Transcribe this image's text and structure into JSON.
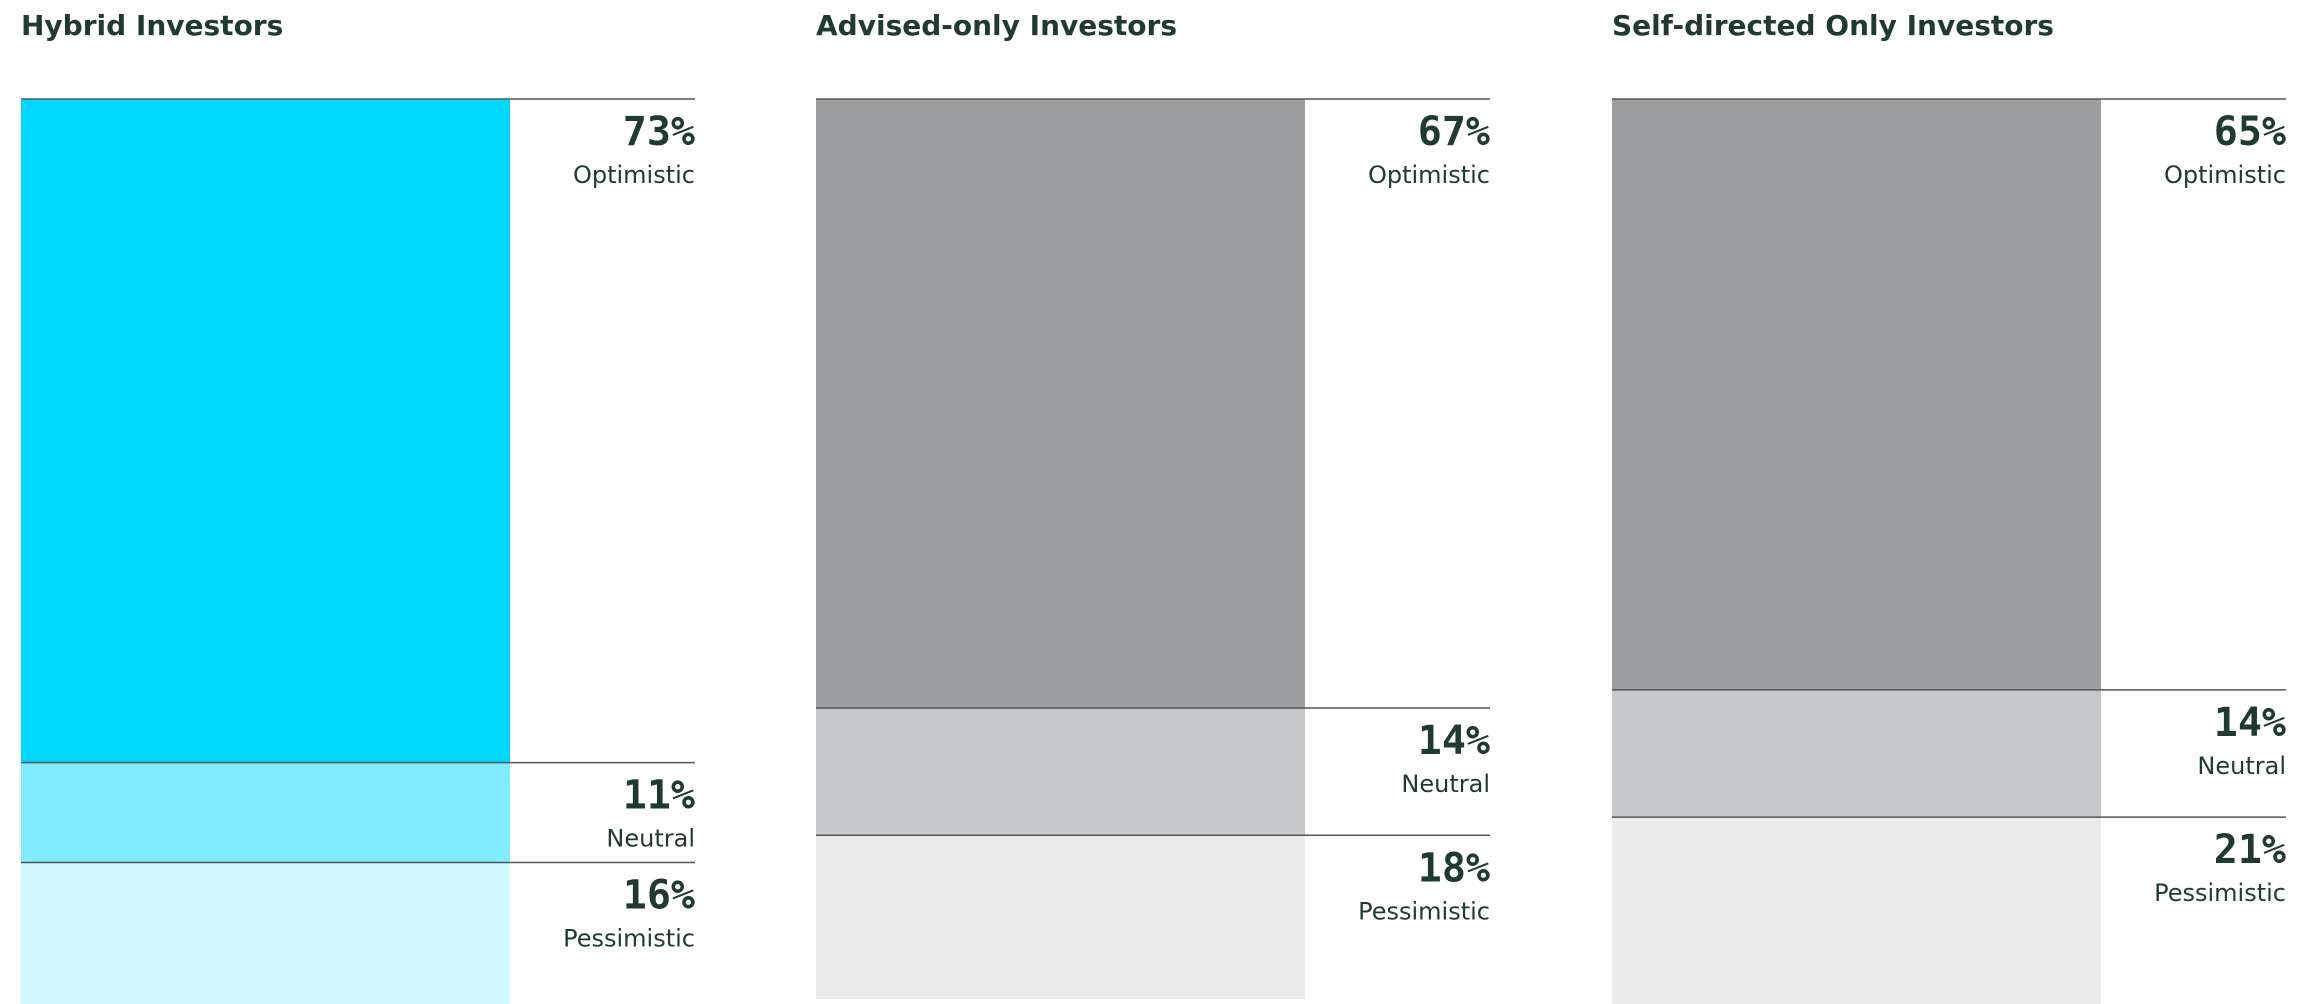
{
  "chart_data": [
    {
      "type": "stacked-bar",
      "title": "Hybrid Investors",
      "categories": [
        "Optimistic",
        "Neutral",
        "Pessimistic"
      ],
      "values": [
        73,
        11,
        16
      ],
      "value_labels": [
        "73%",
        "11%",
        "16%"
      ],
      "colors": [
        "#00d8ff",
        "#80ecff",
        "#d1f7ff"
      ],
      "ylim": [
        0,
        100
      ]
    },
    {
      "type": "stacked-bar",
      "title": "Advised-only Investors",
      "categories": [
        "Optimistic",
        "Neutral",
        "Pessimistic"
      ],
      "values": [
        67,
        14,
        18
      ],
      "value_labels": [
        "67%",
        "14%",
        "18%"
      ],
      "colors": [
        "#9d9ea0",
        "#c7c8ca",
        "#ebebeb"
      ],
      "ylim": [
        0,
        100
      ]
    },
    {
      "type": "stacked-bar",
      "title": "Self-directed Only Investors",
      "categories": [
        "Optimistic",
        "Neutral",
        "Pessimistic"
      ],
      "values": [
        65,
        14,
        21
      ],
      "value_labels": [
        "65%",
        "14%",
        "21%"
      ],
      "colors": [
        "#9d9ea0",
        "#c7c8ca",
        "#ebebeb"
      ],
      "ylim": [
        0,
        100
      ]
    }
  ]
}
